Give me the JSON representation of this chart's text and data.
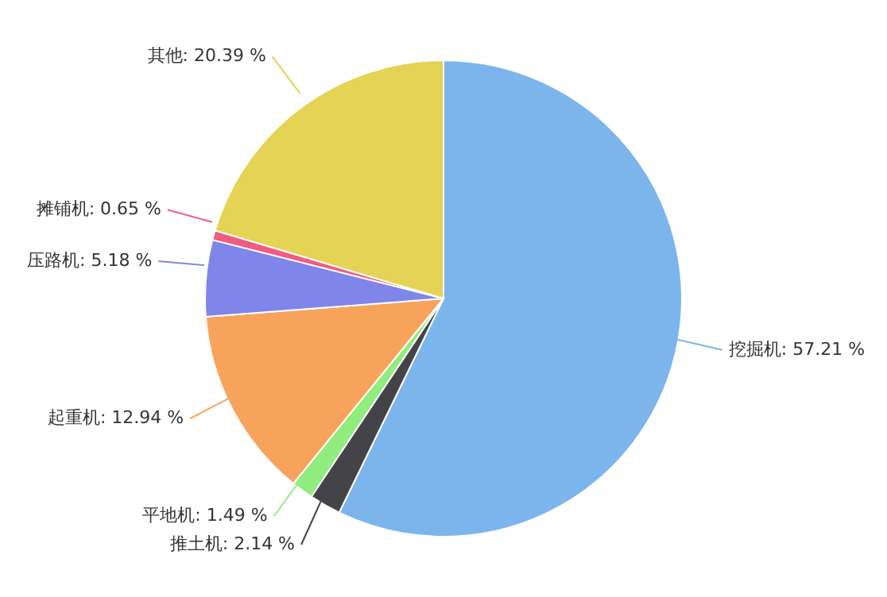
{
  "chart_data": {
    "type": "pie",
    "categories": [
      "挖掘机",
      "推土机",
      "平地机",
      "起重机",
      "压路机",
      "摊铺机",
      "其他"
    ],
    "values": [
      57.21,
      2.14,
      1.49,
      12.94,
      5.18,
      0.65,
      20.39
    ],
    "colors": [
      "#7cb5ec",
      "#434348",
      "#90ed7d",
      "#f7a35c",
      "#8085e9",
      "#f15c80",
      "#e4d354"
    ],
    "value_labels": [
      "57.21 %",
      "2.14 %",
      "1.49 %",
      "12.94 %",
      "5.18 %",
      "0.65 %",
      "20.39 %"
    ]
  }
}
